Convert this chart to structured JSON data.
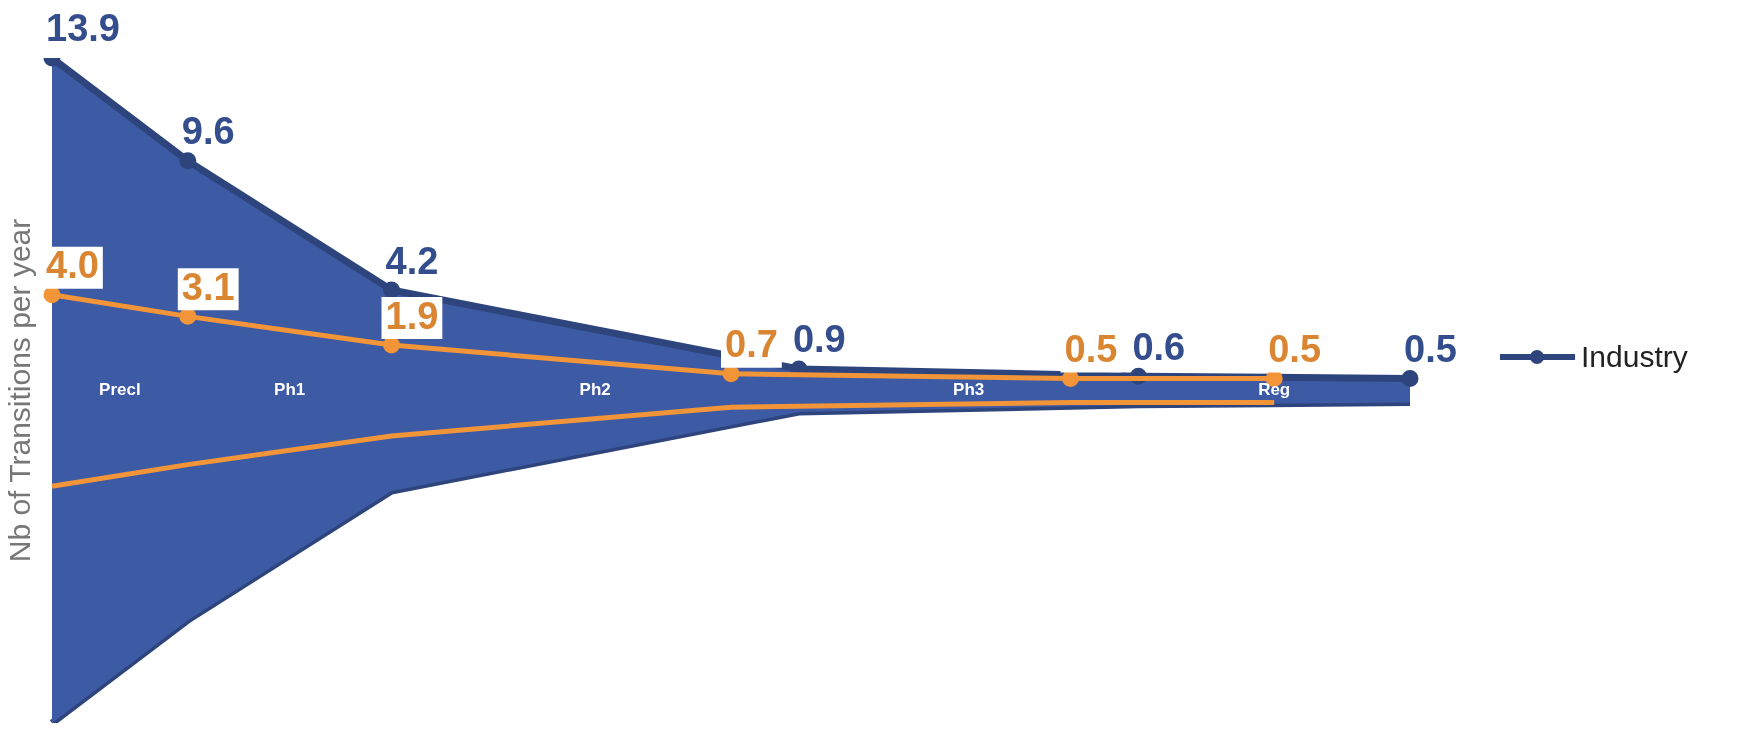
{
  "chart_data": {
    "type": "area",
    "ylabel": "Nb of Transitions per year",
    "categories": [
      null,
      null,
      null,
      null,
      null,
      null,
      null,
      null,
      null,
      null,
      null,
      null,
      null,
      null,
      null,
      null,
      null,
      null,
      null,
      null,
      null
    ],
    "series": [
      {
        "name": "Industry",
        "color": "#3d5aa5",
        "values": [
          13.9,
          null,
          9.6,
          null,
          null,
          4.2,
          null,
          null,
          null,
          null,
          null,
          0.9,
          null,
          null,
          null,
          null,
          0.6,
          null,
          null,
          null,
          0.5
        ],
        "value_labels": [
          "13.9",
          null,
          "9.6",
          null,
          null,
          "4.2",
          null,
          null,
          null,
          null,
          null,
          "0.9",
          null,
          null,
          null,
          null,
          "0.6",
          null,
          null,
          null,
          "0.5"
        ]
      },
      {
        "type": "line",
        "color": "#f29438",
        "values": [
          4.0,
          null,
          3.1,
          null,
          null,
          1.9,
          null,
          null,
          null,
          null,
          0.7,
          null,
          null,
          null,
          null,
          0.5,
          null,
          null,
          0.5,
          null,
          null
        ],
        "value_labels": [
          "4.0",
          null,
          "3.1",
          null,
          null,
          "1.9",
          null,
          null,
          null,
          null,
          "0.7",
          null,
          null,
          null,
          null,
          "0.5",
          null,
          null,
          "0.5",
          null,
          null
        ]
      }
    ],
    "annotations": [
      "Precl",
      "Ph1",
      "Ph2",
      "Ph3",
      "Reg"
    ],
    "legend": "right",
    "marker": "circle",
    "grid": false
  }
}
